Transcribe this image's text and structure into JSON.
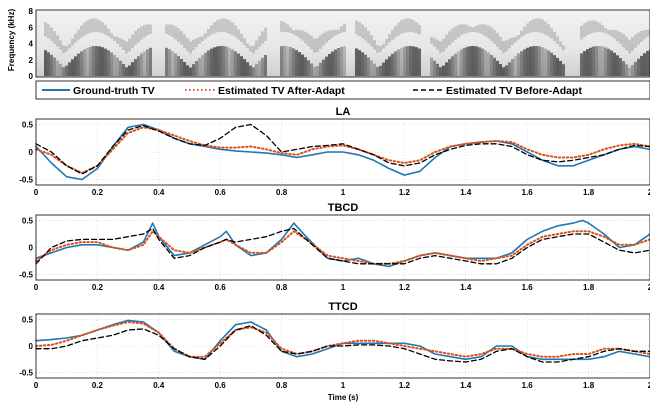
{
  "spectrogram": {
    "ylabel": "Frequency (kHz)",
    "yticks": [
      "0",
      "2",
      "4",
      "6",
      "8"
    ]
  },
  "legend": {
    "entries": [
      {
        "label": "Ground-truth TV",
        "color": "#1f77b4",
        "style": "solid"
      },
      {
        "label": "Estimated TV After-Adapt",
        "color": "#d95319",
        "style": "dotted"
      },
      {
        "label": "Estimated TV Before-Adapt",
        "color": "#000000",
        "style": "dashed"
      }
    ]
  },
  "chart_data": [
    {
      "type": "line",
      "title": "LA",
      "xlabel": "",
      "ylabel": "",
      "xlim": [
        0,
        2
      ],
      "ylim": [
        -0.6,
        0.6
      ],
      "xticks": [
        "0",
        "0.2",
        "0.4",
        "0.6",
        "0.8",
        "1",
        "1.2",
        "1.4",
        "1.6",
        "1.8",
        "2"
      ],
      "yticks": [
        "-0.5",
        "0",
        "0.5"
      ],
      "grid": true,
      "series": [
        {
          "name": "Ground-truth TV",
          "x": [
            0,
            0.05,
            0.1,
            0.15,
            0.2,
            0.25,
            0.3,
            0.35,
            0.4,
            0.45,
            0.5,
            0.55,
            0.6,
            0.65,
            0.7,
            0.75,
            0.8,
            0.85,
            0.9,
            0.95,
            1.0,
            1.05,
            1.1,
            1.15,
            1.2,
            1.25,
            1.3,
            1.35,
            1.4,
            1.45,
            1.5,
            1.55,
            1.6,
            1.65,
            1.7,
            1.75,
            1.8,
            1.85,
            1.9,
            1.95,
            2.0
          ],
          "y": [
            0.1,
            -0.2,
            -0.45,
            -0.5,
            -0.3,
            0.1,
            0.45,
            0.5,
            0.4,
            0.25,
            0.15,
            0.1,
            0.05,
            0.02,
            0.0,
            -0.02,
            -0.05,
            -0.1,
            -0.05,
            0.0,
            0.0,
            -0.05,
            -0.15,
            -0.3,
            -0.42,
            -0.35,
            -0.1,
            0.1,
            0.15,
            0.18,
            0.2,
            0.15,
            0.0,
            -0.15,
            -0.25,
            -0.25,
            -0.15,
            -0.05,
            0.05,
            0.1,
            0.05
          ]
        },
        {
          "name": "Estimated TV After-Adapt",
          "x": [
            0,
            0.05,
            0.1,
            0.15,
            0.2,
            0.25,
            0.3,
            0.35,
            0.4,
            0.45,
            0.5,
            0.55,
            0.6,
            0.65,
            0.7,
            0.75,
            0.8,
            0.85,
            0.9,
            0.95,
            1.0,
            1.05,
            1.1,
            1.15,
            1.2,
            1.25,
            1.3,
            1.35,
            1.4,
            1.45,
            1.5,
            1.55,
            1.6,
            1.65,
            1.7,
            1.75,
            1.8,
            1.85,
            1.9,
            1.95,
            2.0
          ],
          "y": [
            0.05,
            -0.05,
            -0.25,
            -0.38,
            -0.25,
            0.05,
            0.35,
            0.45,
            0.4,
            0.3,
            0.2,
            0.12,
            0.08,
            0.08,
            0.1,
            0.05,
            -0.02,
            -0.05,
            0.05,
            0.1,
            0.12,
            0.05,
            -0.05,
            -0.15,
            -0.2,
            -0.15,
            0.0,
            0.1,
            0.15,
            0.18,
            0.2,
            0.18,
            0.05,
            -0.05,
            -0.1,
            -0.1,
            -0.05,
            0.05,
            0.12,
            0.15,
            0.1
          ]
        },
        {
          "name": "Estimated TV Before-Adapt",
          "x": [
            0,
            0.05,
            0.1,
            0.15,
            0.2,
            0.25,
            0.3,
            0.35,
            0.4,
            0.45,
            0.5,
            0.55,
            0.6,
            0.65,
            0.7,
            0.75,
            0.8,
            0.85,
            0.9,
            0.95,
            1.0,
            1.05,
            1.1,
            1.15,
            1.2,
            1.25,
            1.3,
            1.35,
            1.4,
            1.45,
            1.5,
            1.55,
            1.6,
            1.65,
            1.7,
            1.75,
            1.8,
            1.85,
            1.9,
            1.95,
            2.0
          ],
          "y": [
            0.15,
            0.0,
            -0.25,
            -0.4,
            -0.25,
            0.1,
            0.4,
            0.48,
            0.38,
            0.25,
            0.15,
            0.12,
            0.25,
            0.45,
            0.5,
            0.3,
            0.0,
            0.05,
            0.1,
            0.12,
            0.15,
            0.05,
            -0.05,
            -0.2,
            -0.25,
            -0.2,
            -0.05,
            0.05,
            0.12,
            0.15,
            0.15,
            0.1,
            -0.05,
            -0.15,
            -0.18,
            -0.15,
            -0.1,
            -0.05,
            0.05,
            0.12,
            0.1
          ]
        }
      ]
    },
    {
      "type": "line",
      "title": "TBCD",
      "xlabel": "",
      "ylabel": "",
      "xlim": [
        0,
        2
      ],
      "ylim": [
        -0.6,
        0.6
      ],
      "xticks": [
        "0",
        "0.2",
        "0.4",
        "0.6",
        "0.8",
        "1",
        "1.2",
        "1.4",
        "1.6",
        "1.8",
        "2"
      ],
      "yticks": [
        "-0.5",
        "0",
        "0.5"
      ],
      "grid": true,
      "series": [
        {
          "name": "Ground-truth TV",
          "x": [
            0,
            0.05,
            0.1,
            0.15,
            0.2,
            0.25,
            0.3,
            0.35,
            0.38,
            0.4,
            0.45,
            0.5,
            0.55,
            0.6,
            0.62,
            0.65,
            0.7,
            0.75,
            0.8,
            0.84,
            0.88,
            0.95,
            1.0,
            1.05,
            1.1,
            1.15,
            1.2,
            1.25,
            1.3,
            1.35,
            1.4,
            1.45,
            1.5,
            1.55,
            1.6,
            1.65,
            1.7,
            1.75,
            1.78,
            1.8,
            1.85,
            1.9,
            1.95,
            2.0
          ],
          "y": [
            -0.2,
            -0.1,
            0.0,
            0.05,
            0.05,
            0.0,
            -0.05,
            0.1,
            0.45,
            0.2,
            -0.15,
            -0.1,
            0.05,
            0.2,
            0.3,
            0.05,
            -0.15,
            -0.1,
            0.15,
            0.45,
            0.2,
            -0.2,
            -0.25,
            -0.2,
            -0.3,
            -0.35,
            -0.25,
            -0.15,
            -0.1,
            -0.15,
            -0.2,
            -0.2,
            -0.2,
            -0.1,
            0.15,
            0.3,
            0.4,
            0.45,
            0.5,
            0.45,
            0.25,
            0.0,
            0.05,
            0.25
          ]
        },
        {
          "name": "Estimated TV After-Adapt",
          "x": [
            0,
            0.05,
            0.1,
            0.15,
            0.2,
            0.25,
            0.3,
            0.35,
            0.38,
            0.4,
            0.45,
            0.5,
            0.55,
            0.6,
            0.62,
            0.65,
            0.7,
            0.75,
            0.8,
            0.84,
            0.88,
            0.95,
            1.0,
            1.05,
            1.1,
            1.15,
            1.2,
            1.25,
            1.3,
            1.35,
            1.4,
            1.45,
            1.5,
            1.55,
            1.6,
            1.65,
            1.7,
            1.75,
            1.78,
            1.8,
            1.85,
            1.9,
            1.95,
            2.0
          ],
          "y": [
            -0.25,
            -0.05,
            0.05,
            0.1,
            0.1,
            0.0,
            -0.05,
            0.05,
            0.3,
            0.2,
            -0.05,
            -0.1,
            0.0,
            0.1,
            0.15,
            0.05,
            -0.1,
            -0.1,
            0.1,
            0.3,
            0.15,
            -0.15,
            -0.2,
            -0.25,
            -0.3,
            -0.3,
            -0.25,
            -0.15,
            -0.1,
            -0.15,
            -0.2,
            -0.25,
            -0.2,
            -0.15,
            0.05,
            0.2,
            0.25,
            0.3,
            0.3,
            0.3,
            0.2,
            0.05,
            0.05,
            0.15
          ]
        },
        {
          "name": "Estimated TV Before-Adapt",
          "x": [
            0,
            0.05,
            0.1,
            0.15,
            0.2,
            0.25,
            0.3,
            0.35,
            0.38,
            0.4,
            0.45,
            0.5,
            0.55,
            0.6,
            0.62,
            0.65,
            0.7,
            0.75,
            0.8,
            0.84,
            0.88,
            0.95,
            1.0,
            1.05,
            1.1,
            1.15,
            1.2,
            1.25,
            1.3,
            1.35,
            1.4,
            1.45,
            1.5,
            1.55,
            1.6,
            1.65,
            1.7,
            1.75,
            1.78,
            1.8,
            1.85,
            1.9,
            1.95,
            2.0
          ],
          "y": [
            -0.3,
            0.0,
            0.12,
            0.15,
            0.15,
            0.15,
            0.2,
            0.25,
            0.35,
            0.15,
            -0.2,
            -0.15,
            0.0,
            0.1,
            0.15,
            0.1,
            0.15,
            0.2,
            0.3,
            0.35,
            0.15,
            -0.2,
            -0.25,
            -0.3,
            -0.3,
            -0.3,
            -0.3,
            -0.2,
            -0.15,
            -0.2,
            -0.25,
            -0.3,
            -0.3,
            -0.2,
            0.0,
            0.15,
            0.2,
            0.25,
            0.25,
            0.25,
            0.1,
            -0.05,
            -0.1,
            -0.05
          ]
        }
      ]
    },
    {
      "type": "line",
      "title": "TTCD",
      "xlabel": "Time (s)",
      "ylabel": "",
      "xlim": [
        0,
        2
      ],
      "ylim": [
        -0.6,
        0.6
      ],
      "xticks": [
        "0",
        "0.2",
        "0.4",
        "0.6",
        "0.8",
        "1",
        "1.2",
        "1.4",
        "1.6",
        "1.8",
        "2"
      ],
      "yticks": [
        "-0.5",
        "0",
        "0.5"
      ],
      "grid": true,
      "series": [
        {
          "name": "Ground-truth TV",
          "x": [
            0,
            0.05,
            0.1,
            0.15,
            0.2,
            0.25,
            0.3,
            0.35,
            0.4,
            0.45,
            0.5,
            0.55,
            0.6,
            0.65,
            0.7,
            0.75,
            0.8,
            0.85,
            0.9,
            0.95,
            1.0,
            1.05,
            1.1,
            1.15,
            1.2,
            1.25,
            1.3,
            1.35,
            1.4,
            1.45,
            1.5,
            1.55,
            1.6,
            1.65,
            1.7,
            1.75,
            1.8,
            1.85,
            1.9,
            1.95,
            2.0
          ],
          "y": [
            0.1,
            0.12,
            0.15,
            0.2,
            0.3,
            0.4,
            0.48,
            0.45,
            0.25,
            -0.1,
            -0.2,
            -0.25,
            0.1,
            0.4,
            0.45,
            0.3,
            -0.1,
            -0.2,
            -0.15,
            -0.05,
            0.05,
            0.05,
            0.05,
            0.05,
            0.05,
            0.0,
            -0.15,
            -0.2,
            -0.25,
            -0.2,
            0.0,
            0.0,
            -0.2,
            -0.25,
            -0.25,
            -0.25,
            -0.25,
            -0.2,
            -0.1,
            -0.15,
            -0.2
          ]
        },
        {
          "name": "Estimated TV After-Adapt",
          "x": [
            0,
            0.05,
            0.1,
            0.15,
            0.2,
            0.25,
            0.3,
            0.35,
            0.4,
            0.45,
            0.5,
            0.55,
            0.6,
            0.65,
            0.7,
            0.75,
            0.8,
            0.85,
            0.9,
            0.95,
            1.0,
            1.05,
            1.1,
            1.15,
            1.2,
            1.25,
            1.3,
            1.35,
            1.4,
            1.45,
            1.5,
            1.55,
            1.6,
            1.65,
            1.7,
            1.75,
            1.8,
            1.85,
            1.9,
            1.95,
            2.0
          ],
          "y": [
            0.0,
            0.02,
            0.1,
            0.2,
            0.3,
            0.38,
            0.45,
            0.42,
            0.25,
            -0.05,
            -0.2,
            -0.2,
            0.05,
            0.3,
            0.35,
            0.25,
            -0.05,
            -0.15,
            -0.1,
            0.0,
            0.05,
            0.1,
            0.1,
            0.05,
            0.0,
            -0.05,
            -0.1,
            -0.15,
            -0.2,
            -0.15,
            -0.05,
            -0.05,
            -0.15,
            -0.2,
            -0.2,
            -0.15,
            -0.15,
            -0.05,
            -0.05,
            -0.1,
            -0.15
          ]
        },
        {
          "name": "Estimated TV Before-Adapt",
          "x": [
            0,
            0.05,
            0.1,
            0.15,
            0.2,
            0.25,
            0.3,
            0.35,
            0.4,
            0.45,
            0.5,
            0.55,
            0.6,
            0.65,
            0.7,
            0.75,
            0.8,
            0.85,
            0.9,
            0.95,
            1.0,
            1.05,
            1.1,
            1.15,
            1.2,
            1.25,
            1.3,
            1.35,
            1.4,
            1.45,
            1.5,
            1.55,
            1.6,
            1.65,
            1.7,
            1.75,
            1.8,
            1.85,
            1.9,
            1.95,
            2.0
          ],
          "y": [
            -0.05,
            -0.05,
            0.0,
            0.1,
            0.15,
            0.2,
            0.3,
            0.32,
            0.2,
            -0.05,
            -0.2,
            -0.25,
            0.0,
            0.3,
            0.38,
            0.2,
            -0.1,
            -0.15,
            -0.1,
            0.0,
            0.0,
            0.02,
            0.02,
            0.0,
            -0.05,
            -0.15,
            -0.25,
            -0.28,
            -0.3,
            -0.25,
            -0.1,
            -0.05,
            -0.2,
            -0.3,
            -0.3,
            -0.25,
            -0.2,
            -0.1,
            -0.05,
            -0.1,
            -0.1
          ]
        }
      ]
    }
  ]
}
